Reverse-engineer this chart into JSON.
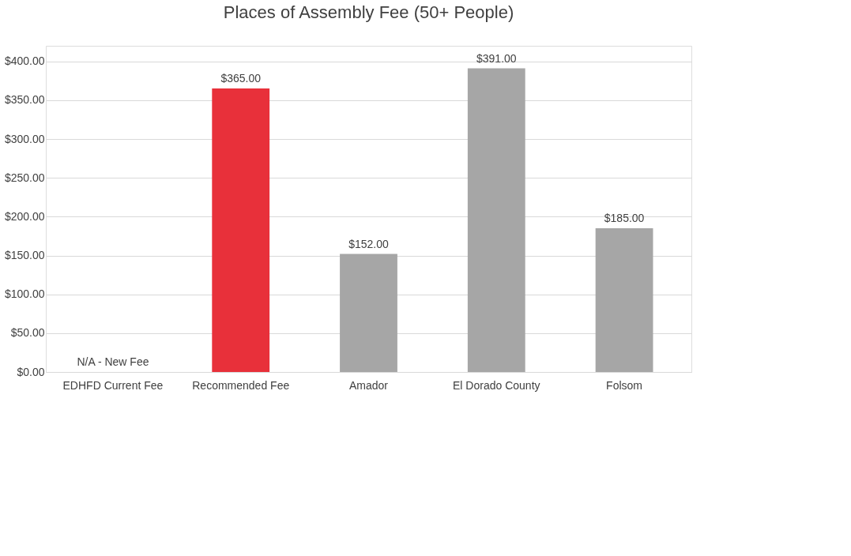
{
  "chart_data": {
    "type": "bar",
    "title": "Places of Assembly Fee (50+ People)",
    "categories": [
      "EDHFD Current Fee",
      "Recommended Fee",
      "Amador",
      "El Dorado County",
      "Folsom"
    ],
    "values": [
      0,
      365,
      152,
      391,
      185
    ],
    "colors": [
      "#e8303a",
      "#e8303a",
      "#a6a6a6",
      "#a6a6a6",
      "#a6a6a6"
    ],
    "value_labels": [
      "N/A - New Fee",
      "$365.00",
      "$152.00",
      "$391.00",
      "$185.00"
    ],
    "ylim": [
      0,
      420
    ],
    "yticks": [
      {
        "value": 0,
        "label": "$0.00"
      },
      {
        "value": 50,
        "label": "$50.00"
      },
      {
        "value": 100,
        "label": "$100.00"
      },
      {
        "value": 150,
        "label": "$150.00"
      },
      {
        "value": 200,
        "label": "$200.00"
      },
      {
        "value": 250,
        "label": "$250.00"
      },
      {
        "value": 300,
        "label": "$300.00"
      },
      {
        "value": 350,
        "label": "$350.00"
      },
      {
        "value": 400,
        "label": "$400.00"
      }
    ],
    "grid": "y"
  }
}
